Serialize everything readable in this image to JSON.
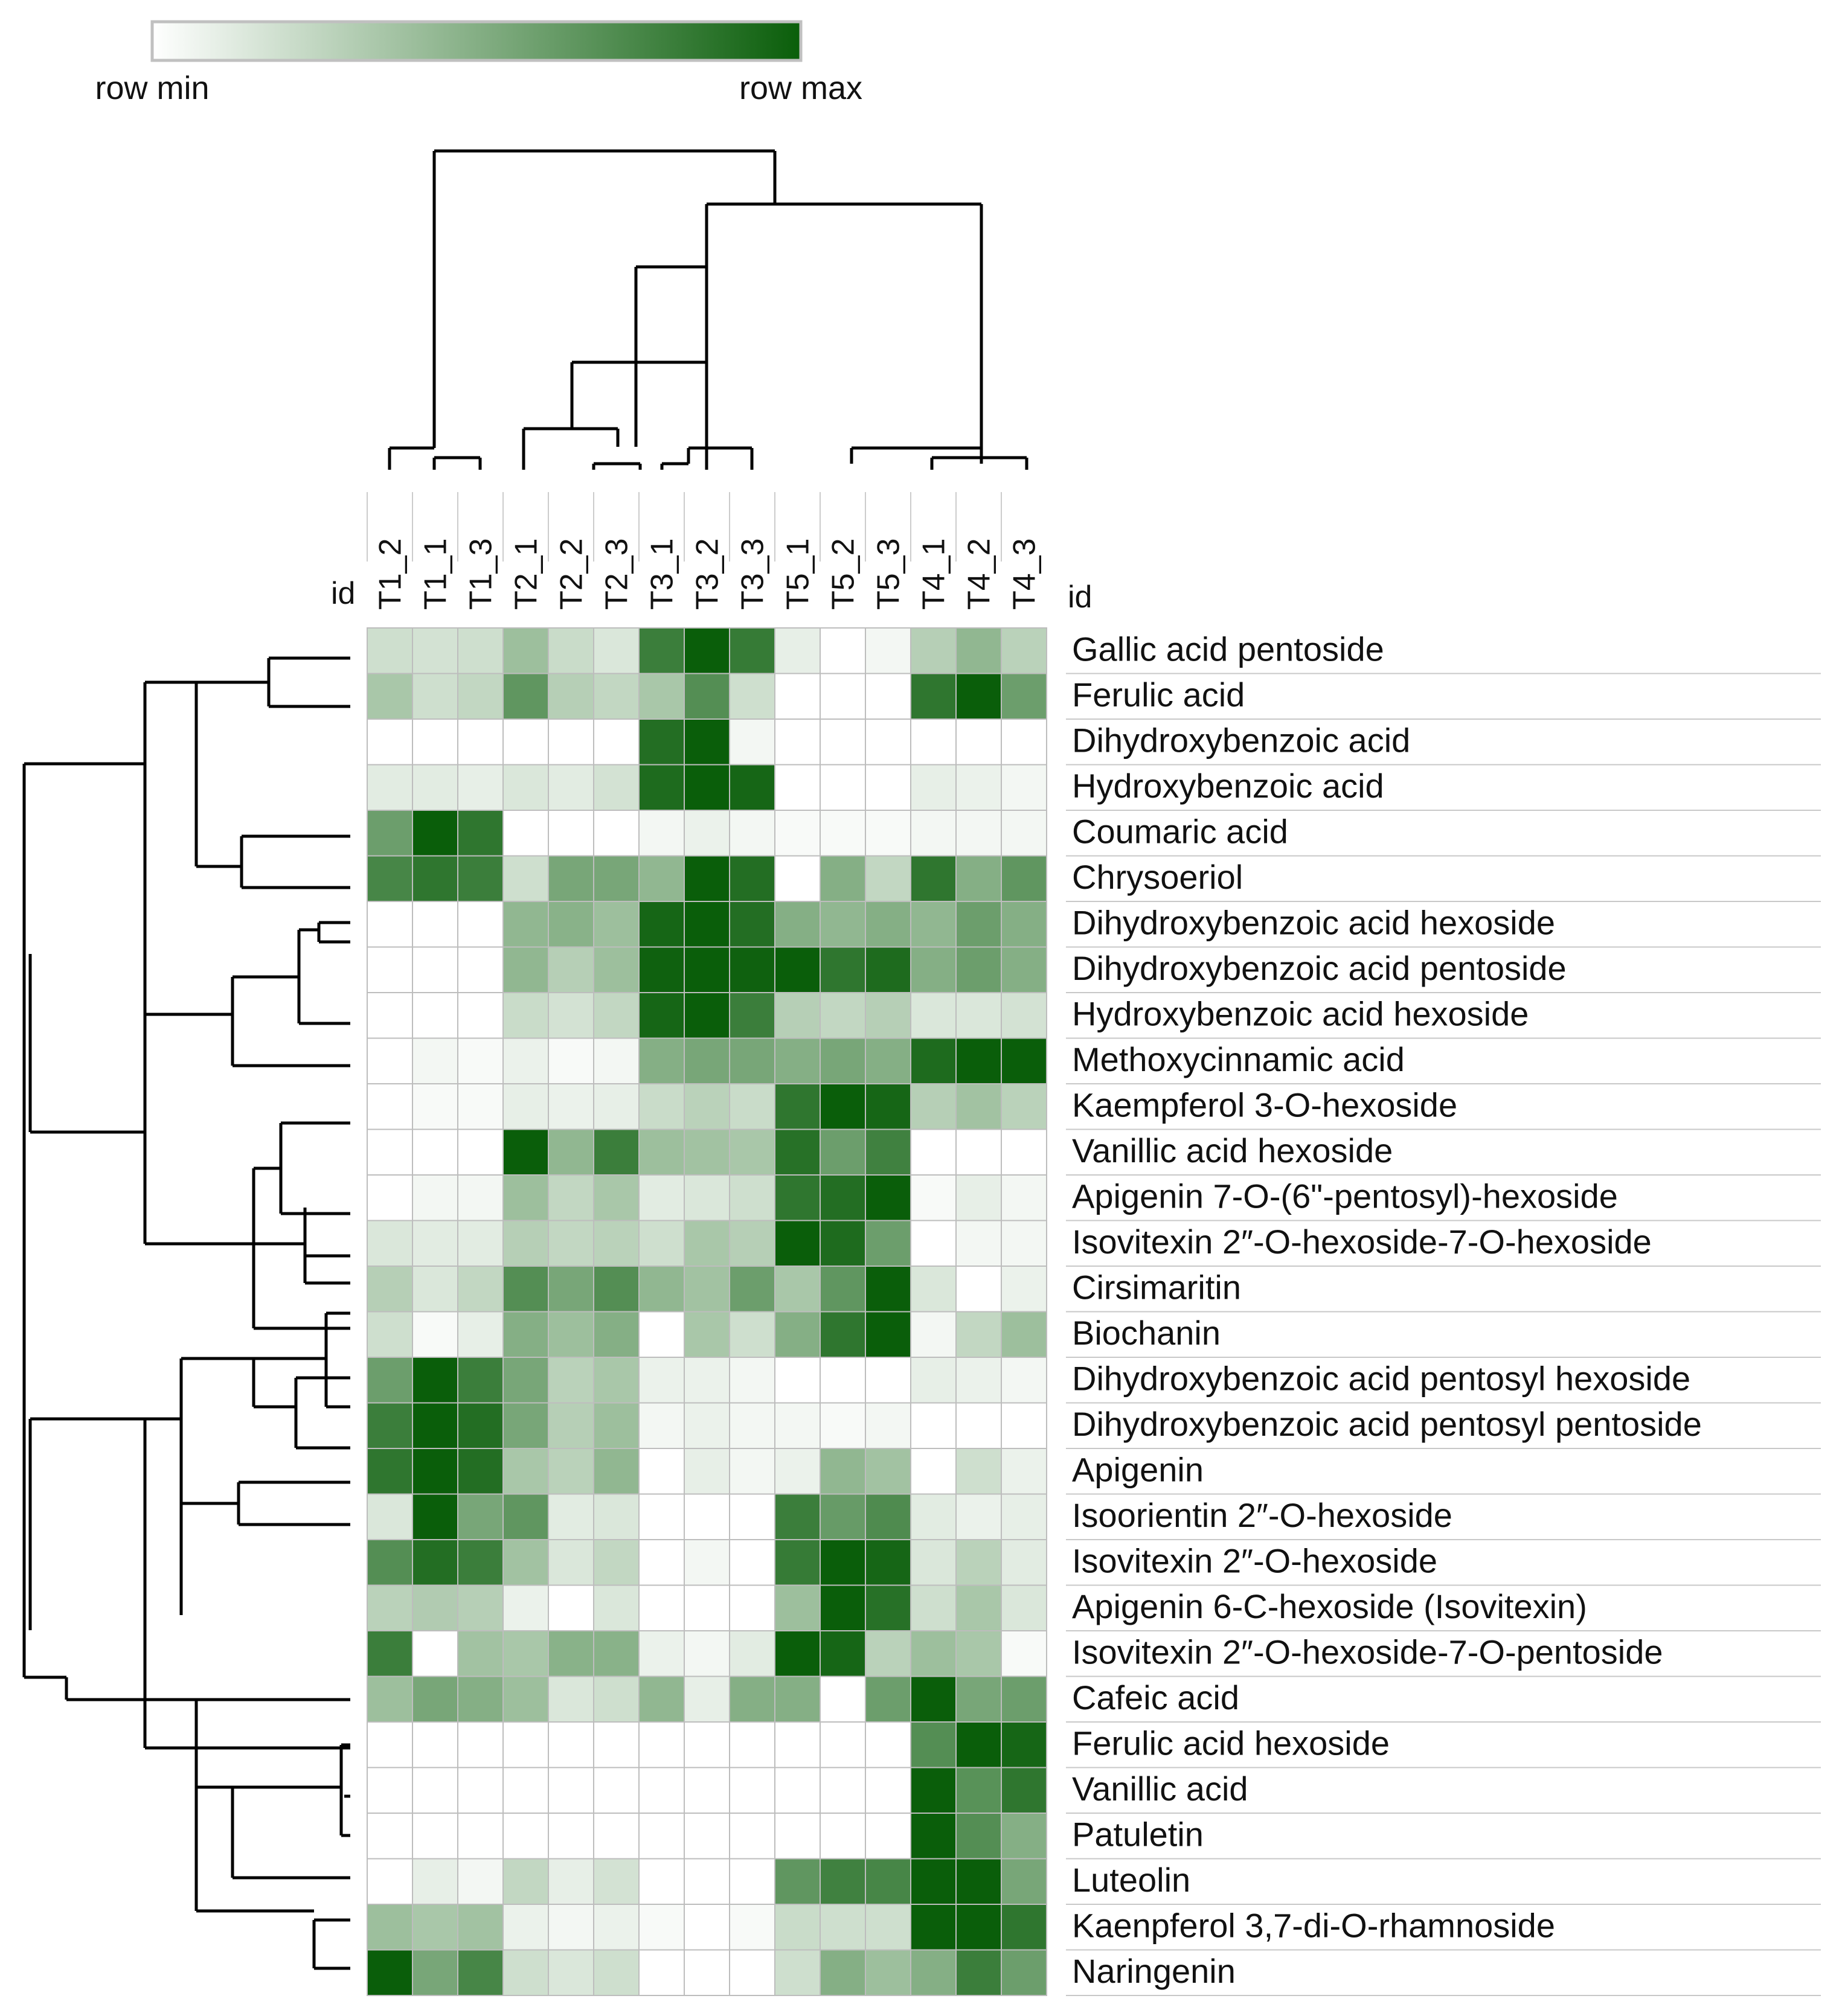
{
  "colors": {
    "min": "#ffffff",
    "max": "#0a5e0a",
    "grid": "#bdbdbd",
    "dendrogram": "#000000"
  },
  "legend": {
    "min_label": "row min",
    "max_label": "row max"
  },
  "chart_data": {
    "type": "heatmap",
    "title": "",
    "color_scale": "row-normalized (row min to row max)",
    "id_label_columns": "id",
    "id_label_rows": "id",
    "columns": [
      "T1_2",
      "T1_1",
      "T1_3",
      "T2_1",
      "T2_2",
      "T2_3",
      "T3_1",
      "T3_2",
      "T3_3",
      "T5_1",
      "T5_2",
      "T5_3",
      "T4_1",
      "T4_2",
      "T4_3"
    ],
    "rows": [
      "Gallic acid pentoside",
      "Ferulic acid",
      "Dihydroxybenzoic acid",
      "Hydroxybenzoic acid",
      "Coumaric acid",
      "Chrysoeriol",
      "Dihydroxybenzoic acid hexoside",
      "Dihydroxybenzoic acid pentoside",
      "Hydroxybenzoic acid hexoside",
      "Methoxycinnamic acid",
      "Kaempferol 3-O-hexoside",
      "Vanillic acid hexoside",
      "Apigenin 7-O-(6\"-pentosyl)-hexoside",
      "Isovitexin 2″-O-hexoside-7-O-hexoside",
      "Cirsimaritin",
      "Biochanin",
      "Dihydroxybenzoic acid pentosyl hexoside",
      "Dihydroxybenzoic acid pentosyl pentoside",
      "Apigenin",
      "Isoorientin 2″-O-hexoside",
      "Isovitexin 2″-O-hexoside",
      "Apigenin 6-C-hexoside (Isovitexin)",
      "Isovitexin 2″-O-hexoside-7-O-pentoside",
      "Cafeic acid",
      "Ferulic acid hexoside",
      "Vanillic acid",
      "Patuletin",
      "Luteolin",
      "Kaenpferol 3,7-di-O-rhamnoside",
      "Naringenin"
    ],
    "values": [
      [
        0.2,
        0.18,
        0.2,
        0.4,
        0.22,
        0.15,
        0.8,
        1.0,
        0.82,
        0.1,
        0.0,
        0.05,
        0.3,
        0.45,
        0.28
      ],
      [
        0.35,
        0.2,
        0.25,
        0.65,
        0.3,
        0.25,
        0.35,
        0.7,
        0.2,
        0.0,
        0.0,
        0.0,
        0.85,
        1.0,
        0.6
      ],
      [
        0.0,
        0.0,
        0.0,
        0.0,
        0.0,
        0.0,
        0.9,
        1.0,
        0.05,
        0.0,
        0.0,
        0.0,
        0.0,
        0.0,
        0.0
      ],
      [
        0.12,
        0.12,
        0.1,
        0.15,
        0.12,
        0.18,
        0.92,
        1.0,
        0.95,
        0.0,
        0.0,
        0.0,
        0.1,
        0.08,
        0.05
      ],
      [
        0.6,
        1.0,
        0.85,
        0.0,
        0.0,
        0.0,
        0.05,
        0.08,
        0.05,
        0.03,
        0.03,
        0.03,
        0.05,
        0.05,
        0.05
      ],
      [
        0.75,
        0.85,
        0.8,
        0.2,
        0.55,
        0.55,
        0.45,
        1.0,
        0.9,
        0.0,
        0.5,
        0.25,
        0.85,
        0.5,
        0.65
      ],
      [
        0.0,
        0.0,
        0.0,
        0.45,
        0.48,
        0.4,
        0.95,
        1.0,
        0.9,
        0.5,
        0.45,
        0.5,
        0.45,
        0.6,
        0.5
      ],
      [
        0.0,
        0.0,
        0.0,
        0.45,
        0.3,
        0.4,
        0.98,
        1.0,
        0.98,
        1.0,
        0.85,
        0.92,
        0.5,
        0.6,
        0.5
      ],
      [
        0.0,
        0.0,
        0.0,
        0.22,
        0.18,
        0.25,
        0.95,
        1.0,
        0.8,
        0.3,
        0.25,
        0.3,
        0.15,
        0.15,
        0.18
      ],
      [
        0.0,
        0.05,
        0.03,
        0.08,
        0.03,
        0.05,
        0.5,
        0.55,
        0.55,
        0.5,
        0.55,
        0.5,
        0.92,
        1.0,
        1.0
      ],
      [
        0.0,
        0.03,
        0.03,
        0.1,
        0.08,
        0.1,
        0.22,
        0.28,
        0.22,
        0.85,
        1.0,
        0.95,
        0.3,
        0.38,
        0.28
      ],
      [
        0.0,
        0.0,
        0.0,
        1.0,
        0.45,
        0.8,
        0.4,
        0.38,
        0.35,
        0.88,
        0.6,
        0.78,
        0.0,
        0.0,
        0.0
      ],
      [
        0.0,
        0.05,
        0.05,
        0.4,
        0.25,
        0.35,
        0.12,
        0.15,
        0.2,
        0.85,
        0.9,
        1.0,
        0.03,
        0.1,
        0.05
      ],
      [
        0.15,
        0.12,
        0.12,
        0.3,
        0.25,
        0.28,
        0.2,
        0.35,
        0.3,
        1.0,
        0.92,
        0.6,
        0.0,
        0.05,
        0.05
      ],
      [
        0.3,
        0.15,
        0.25,
        0.7,
        0.55,
        0.7,
        0.45,
        0.38,
        0.6,
        0.35,
        0.65,
        1.0,
        0.15,
        0.0,
        0.08
      ],
      [
        0.2,
        0.03,
        0.1,
        0.5,
        0.4,
        0.5,
        0.0,
        0.35,
        0.2,
        0.5,
        0.85,
        1.0,
        0.05,
        0.25,
        0.4
      ],
      [
        0.6,
        1.0,
        0.8,
        0.55,
        0.28,
        0.35,
        0.08,
        0.08,
        0.05,
        0.0,
        0.0,
        0.0,
        0.1,
        0.08,
        0.05
      ],
      [
        0.8,
        1.0,
        0.9,
        0.55,
        0.3,
        0.4,
        0.05,
        0.08,
        0.05,
        0.05,
        0.03,
        0.05,
        0.0,
        0.0,
        0.0
      ],
      [
        0.85,
        1.0,
        0.9,
        0.35,
        0.28,
        0.45,
        0.0,
        0.1,
        0.05,
        0.08,
        0.45,
        0.38,
        0.0,
        0.2,
        0.08
      ],
      [
        0.15,
        1.0,
        0.55,
        0.65,
        0.12,
        0.15,
        0.0,
        0.0,
        0.0,
        0.8,
        0.62,
        0.72,
        0.12,
        0.08,
        0.1
      ],
      [
        0.7,
        0.9,
        0.8,
        0.38,
        0.15,
        0.25,
        0.0,
        0.05,
        0.0,
        0.82,
        1.0,
        0.95,
        0.15,
        0.28,
        0.12
      ],
      [
        0.28,
        0.32,
        0.3,
        0.08,
        0.0,
        0.15,
        0.0,
        0.0,
        0.0,
        0.4,
        1.0,
        0.88,
        0.2,
        0.35,
        0.15
      ],
      [
        0.8,
        0.0,
        0.38,
        0.35,
        0.48,
        0.48,
        0.08,
        0.05,
        0.12,
        1.0,
        0.95,
        0.28,
        0.4,
        0.35,
        0.03
      ],
      [
        0.4,
        0.55,
        0.5,
        0.4,
        0.15,
        0.2,
        0.45,
        0.1,
        0.5,
        0.5,
        0.0,
        0.6,
        1.0,
        0.55,
        0.6
      ],
      [
        0.0,
        0.0,
        0.0,
        0.0,
        0.0,
        0.0,
        0.0,
        0.0,
        0.0,
        0.0,
        0.0,
        0.0,
        0.7,
        1.0,
        0.95
      ],
      [
        0.0,
        0.0,
        0.0,
        0.0,
        0.0,
        0.0,
        0.0,
        0.0,
        0.0,
        0.0,
        0.0,
        0.0,
        1.0,
        0.68,
        0.85
      ],
      [
        0.0,
        0.0,
        0.0,
        0.0,
        0.0,
        0.0,
        0.0,
        0.0,
        0.0,
        0.0,
        0.0,
        0.0,
        1.0,
        0.7,
        0.5
      ],
      [
        0.0,
        0.1,
        0.05,
        0.25,
        0.1,
        0.18,
        0.0,
        0.0,
        0.0,
        0.65,
        0.78,
        0.75,
        1.0,
        1.0,
        0.55
      ],
      [
        0.4,
        0.35,
        0.38,
        0.08,
        0.05,
        0.08,
        0.03,
        0.0,
        0.03,
        0.22,
        0.2,
        0.2,
        1.0,
        1.0,
        0.85
      ],
      [
        1.0,
        0.55,
        0.75,
        0.2,
        0.15,
        0.2,
        0.0,
        0.0,
        0.0,
        0.2,
        0.5,
        0.4,
        0.5,
        0.8,
        0.6
      ]
    ]
  }
}
